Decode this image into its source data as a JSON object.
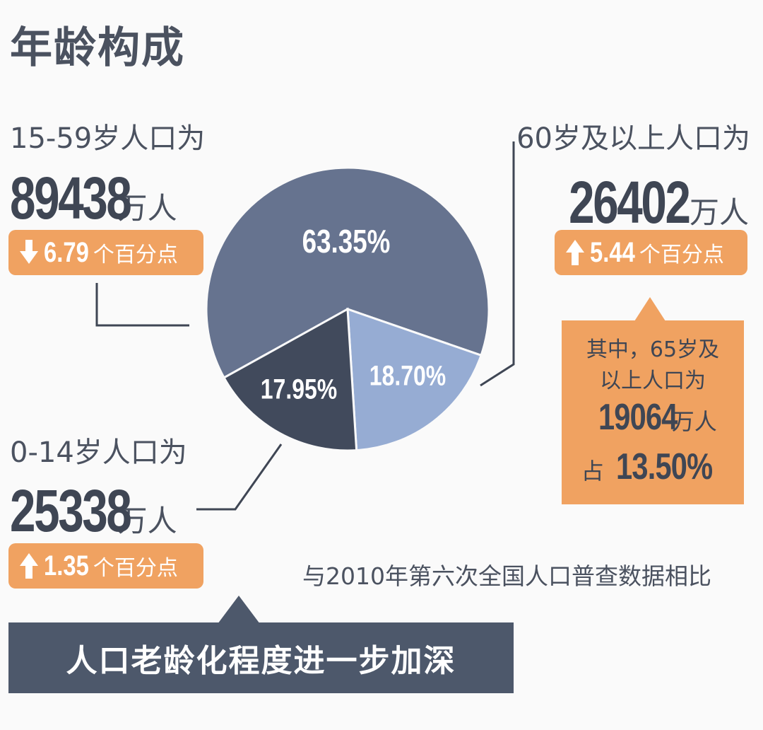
{
  "title": "年龄构成",
  "groups": {
    "working": {
      "label": "15-59岁人口为",
      "value": "89438",
      "unit": "万人",
      "change_direction": "down",
      "change_value": "6.79",
      "change_unit": "个百分点"
    },
    "elderly": {
      "label": "60岁及以上人口为",
      "value": "26402",
      "unit": "万人",
      "change_direction": "up",
      "change_value": "5.44",
      "change_unit": "个百分点"
    },
    "children": {
      "label": "0-14岁人口为",
      "value": "25338",
      "unit": "万人",
      "change_direction": "up",
      "change_value": "1.35",
      "change_unit": "个百分点"
    }
  },
  "callout": {
    "line1": "其中，65岁及",
    "line2": "以上人口为",
    "value": "19064",
    "unit": "万人",
    "share_prefix": "占",
    "share_value": "13.50%"
  },
  "note": "与2010年第六次全国人口普查数据相比",
  "conclusion": "人口老龄化程度进一步加深",
  "colors": {
    "working_slice": "#66738f",
    "elderly_slice": "#96acd3",
    "children_slice": "#414a5c",
    "badge": "#f0a261",
    "bar": "#4d586b"
  },
  "chart_data": {
    "type": "pie",
    "slices": [
      {
        "label": "63.35%",
        "value": 63.35
      },
      {
        "label": "18.70%",
        "value": 18.7
      },
      {
        "label": "17.95%",
        "value": 17.95
      }
    ]
  }
}
